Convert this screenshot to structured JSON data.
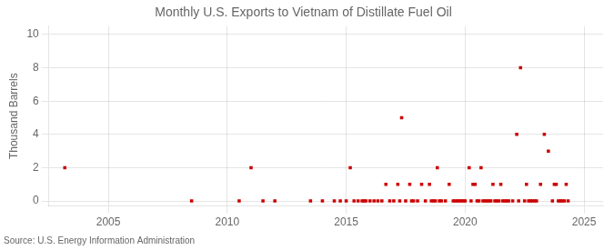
{
  "chart_data": {
    "type": "scatter",
    "title": "Monthly U.S. Exports to Vietnam of Distillate Fuel Oil",
    "ylabel": "Thousand Barrels",
    "source": "Source: U.S. Energy Information Administration",
    "color": "#cc0000",
    "marker": "square",
    "grid": true,
    "xlim": [
      2002.5,
      2025.8
    ],
    "ylim": [
      -0.3,
      10.5
    ],
    "xticks": [
      2005,
      2010,
      2015,
      2020,
      2025
    ],
    "yticks": [
      0,
      2,
      4,
      6,
      8,
      10
    ],
    "x": [
      2003.17,
      2008.5,
      2010.5,
      2011.0,
      2011.5,
      2012.0,
      2013.5,
      2014.0,
      2014.5,
      2014.75,
      2015.0,
      2015.17,
      2015.33,
      2015.5,
      2015.67,
      2015.75,
      2015.83,
      2016.0,
      2016.17,
      2016.33,
      2016.5,
      2016.67,
      2016.83,
      2017.0,
      2017.17,
      2017.25,
      2017.33,
      2017.5,
      2017.67,
      2017.75,
      2017.83,
      2018.0,
      2018.17,
      2018.33,
      2018.5,
      2018.58,
      2018.67,
      2018.75,
      2018.83,
      2018.92,
      2019.0,
      2019.17,
      2019.33,
      2019.5,
      2019.58,
      2019.67,
      2019.75,
      2019.83,
      2019.92,
      2020.0,
      2020.17,
      2020.25,
      2020.33,
      2020.42,
      2020.5,
      2020.58,
      2020.67,
      2020.75,
      2020.83,
      2020.92,
      2021.0,
      2021.08,
      2021.17,
      2021.25,
      2021.33,
      2021.42,
      2021.5,
      2021.58,
      2021.67,
      2021.75,
      2021.83,
      2022.0,
      2022.17,
      2022.25,
      2022.33,
      2022.5,
      2022.58,
      2022.67,
      2022.75,
      2022.83,
      2022.92,
      2023.0,
      2023.17,
      2023.33,
      2023.5,
      2023.67,
      2023.75,
      2023.83,
      2023.92,
      2024.0,
      2024.08,
      2024.17,
      2024.25,
      2024.33
    ],
    "values": [
      2,
      0,
      0,
      2,
      0,
      0,
      0,
      0,
      0,
      0,
      0,
      2,
      0,
      0,
      0,
      0,
      0,
      0,
      0,
      0,
      0,
      1,
      0,
      0,
      1,
      0,
      5,
      0,
      1,
      0,
      0,
      0,
      1,
      0,
      1,
      0,
      0,
      0,
      2,
      0,
      0,
      0,
      1,
      0,
      0,
      0,
      0,
      0,
      0,
      0,
      2,
      0,
      1,
      1,
      0,
      0,
      2,
      0,
      0,
      0,
      0,
      0,
      1,
      0,
      0,
      0,
      1,
      0,
      0,
      0,
      0,
      0,
      4,
      0,
      8,
      0,
      1,
      0,
      0,
      0,
      0,
      0,
      1,
      4,
      3,
      0,
      1,
      1,
      0,
      0,
      0,
      0,
      1,
      0
    ]
  }
}
